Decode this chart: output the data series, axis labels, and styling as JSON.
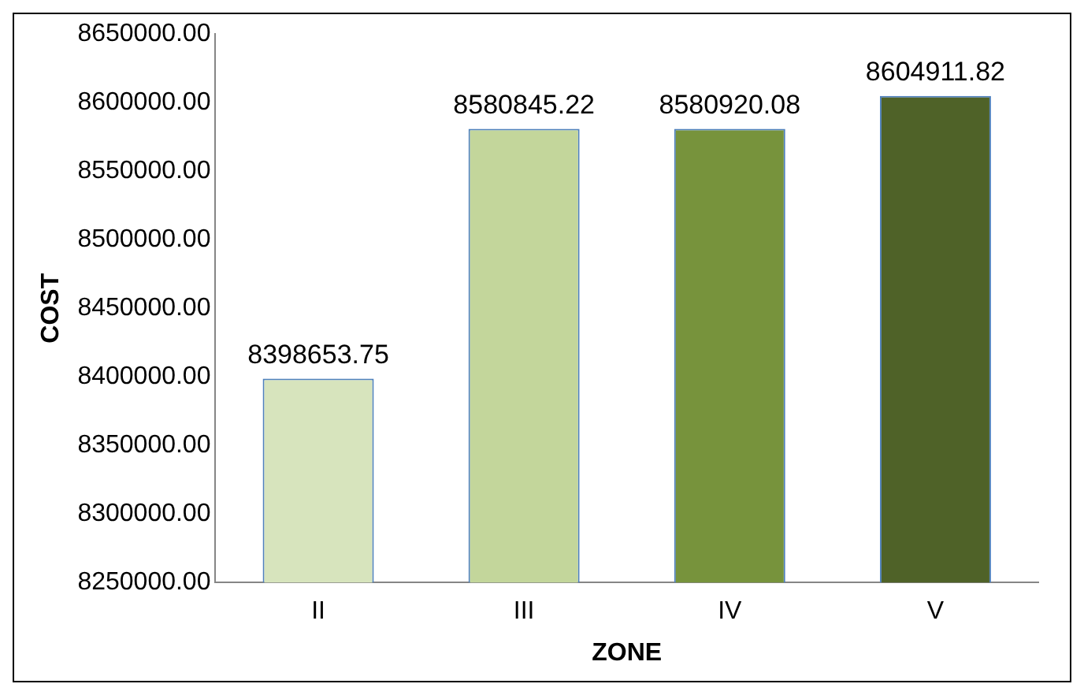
{
  "chart_data": {
    "type": "bar",
    "xlabel": "ZONE",
    "ylabel": "COST",
    "categories": [
      "II",
      "III",
      "IV",
      "V"
    ],
    "values": [
      8398653.75,
      8580845.22,
      8580920.08,
      8604911.82
    ],
    "colors": [
      "#d7e4bd",
      "#c3d69b",
      "#77933c",
      "#4f6228"
    ],
    "ylim": [
      8250000,
      8650000
    ],
    "yticks": [
      {
        "value": 8250000,
        "label": "8250000.00"
      },
      {
        "value": 8300000,
        "label": "8300000.00"
      },
      {
        "value": 8350000,
        "label": "8350000.00"
      },
      {
        "value": 8400000,
        "label": "8400000.00"
      },
      {
        "value": 8450000,
        "label": "8450000.00"
      },
      {
        "value": 8500000,
        "label": "8500000.00"
      },
      {
        "value": 8550000,
        "label": "8550000.00"
      },
      {
        "value": 8600000,
        "label": "8600000.00"
      },
      {
        "value": 8650000,
        "label": "8650000.00"
      }
    ],
    "value_labels": [
      "8398653.75",
      "8580845.22",
      "8580920.08",
      "8604911.82"
    ],
    "grid": false,
    "legend": false
  }
}
